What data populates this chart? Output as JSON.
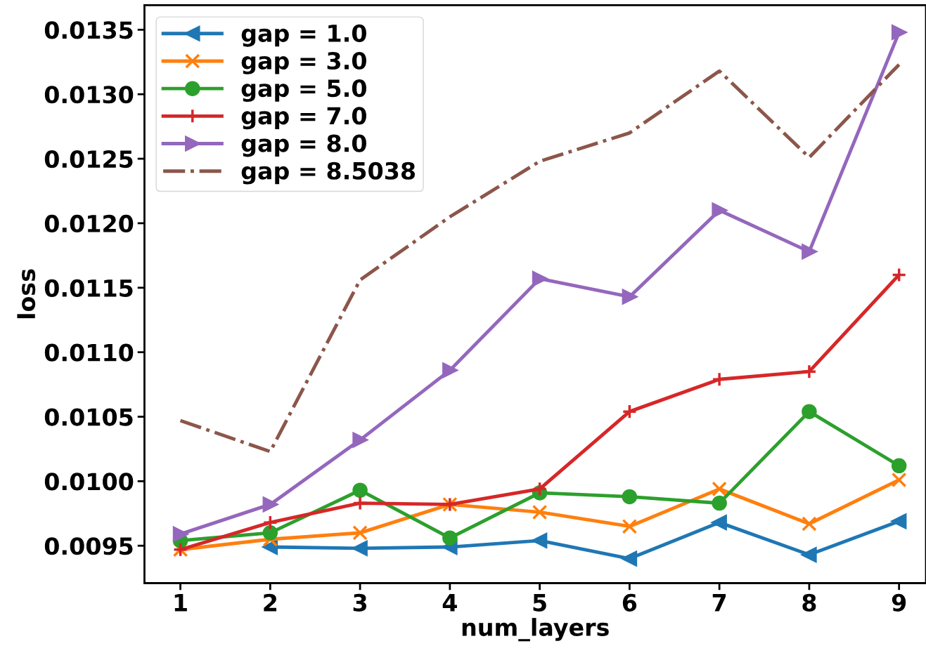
{
  "chart_data": {
    "type": "line",
    "xlabel": "num_layers",
    "ylabel": "loss",
    "x": [
      1,
      2,
      3,
      4,
      5,
      6,
      7,
      8,
      9
    ],
    "series": [
      {
        "name": "gap = 1.0",
        "color": "#1f77b4",
        "marker": "triangle_left",
        "line_style": "solid",
        "values": [
          null,
          0.00949,
          0.00948,
          0.00949,
          0.00954,
          0.0094,
          0.00968,
          0.00943,
          0.00969
        ]
      },
      {
        "name": "gap = 3.0",
        "color": "#ff7f0e",
        "marker": "cross",
        "line_style": "solid",
        "values": [
          0.00947,
          0.00955,
          0.0096,
          0.00982,
          0.00976,
          0.00965,
          0.00994,
          0.00967,
          0.01001
        ]
      },
      {
        "name": "gap = 5.0",
        "color": "#2ca02c",
        "marker": "circle",
        "line_style": "solid",
        "values": [
          0.00954,
          0.0096,
          0.00993,
          0.00956,
          0.00991,
          0.00988,
          0.00983,
          0.01054,
          0.01012
        ]
      },
      {
        "name": "gap = 7.0",
        "color": "#d62728",
        "marker": "plus",
        "line_style": "solid",
        "values": [
          0.00947,
          0.00968,
          0.00983,
          0.00982,
          0.00994,
          0.01054,
          0.01079,
          0.01085,
          0.0116
        ]
      },
      {
        "name": "gap = 8.0",
        "color": "#9467bd",
        "marker": "triangle_right",
        "line_style": "solid",
        "values": [
          0.00959,
          0.00982,
          0.01032,
          0.01086,
          0.01157,
          0.01143,
          0.0121,
          0.01178,
          0.01348
        ]
      },
      {
        "name": "gap = 8.5038",
        "color": "#8c564b",
        "marker": "none",
        "line_style": "dashdot",
        "values": [
          0.01047,
          0.01023,
          0.01156,
          0.01205,
          0.01248,
          0.0127,
          0.01318,
          0.01251,
          0.01323
        ]
      }
    ],
    "xlim": [
      0.6,
      9.3
    ],
    "ylim": [
      0.00921,
      0.01369
    ],
    "xticks": [
      1,
      2,
      3,
      4,
      5,
      6,
      7,
      8,
      9
    ],
    "yticks": [
      {
        "value": 0.0095,
        "label": "0.0095"
      },
      {
        "value": 0.01,
        "label": "0.0100"
      },
      {
        "value": 0.0105,
        "label": "0.0105"
      },
      {
        "value": 0.011,
        "label": "0.0110"
      },
      {
        "value": 0.0115,
        "label": "0.0115"
      },
      {
        "value": 0.012,
        "label": "0.0120"
      },
      {
        "value": 0.0125,
        "label": "0.0125"
      },
      {
        "value": 0.013,
        "label": "0.0130"
      },
      {
        "value": 0.0135,
        "label": "0.0135"
      }
    ],
    "grid": false,
    "legend": "top left"
  }
}
